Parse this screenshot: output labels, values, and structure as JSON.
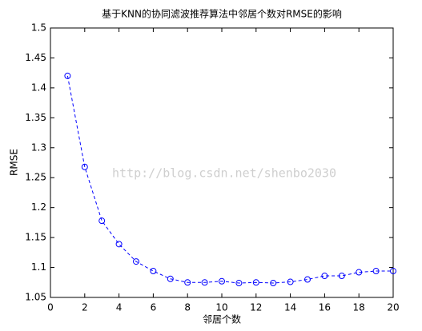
{
  "chart_data": {
    "type": "line",
    "title": "基于KNN的协同滤波推荐算法中邻居个数对RMSE的影响",
    "xlabel": "邻居个数",
    "ylabel": "RMSE",
    "watermark": "http://blog.csdn.net/shenbo2030",
    "x": [
      1,
      2,
      3,
      4,
      5,
      6,
      7,
      8,
      9,
      10,
      11,
      12,
      13,
      14,
      15,
      16,
      17,
      18,
      19,
      20
    ],
    "series": [
      {
        "color": "#0000ff",
        "values": [
          1.42,
          1.268,
          1.178,
          1.139,
          1.11,
          1.094,
          1.081,
          1.075,
          1.075,
          1.077,
          1.074,
          1.075,
          1.074,
          1.076,
          1.08,
          1.086,
          1.086,
          1.092,
          1.094,
          1.094
        ]
      }
    ],
    "xlim": [
      0,
      20
    ],
    "xticks": [
      0,
      2,
      4,
      6,
      8,
      10,
      12,
      14,
      16,
      18,
      20
    ],
    "ylim": [
      1.05,
      1.5
    ],
    "yticks": [
      1.05,
      1.1,
      1.15,
      1.2,
      1.25,
      1.3,
      1.35,
      1.4,
      1.45,
      1.5
    ],
    "grid": false
  }
}
